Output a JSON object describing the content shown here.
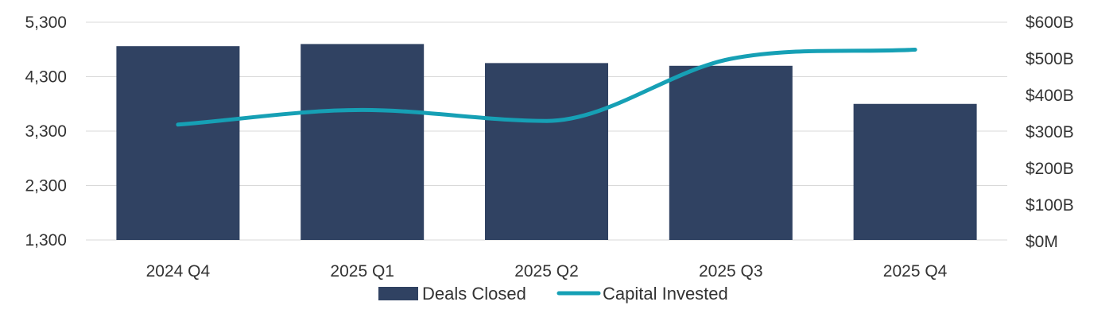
{
  "chart_data": {
    "type": "bar",
    "categories": [
      "2024 Q4",
      "2025 Q1",
      "2025 Q2",
      "2025 Q3",
      "2025 Q4"
    ],
    "series": [
      {
        "name": "Deals Closed",
        "type": "bar",
        "axis": "left",
        "color": "#304262",
        "values": [
          4860,
          4900,
          4550,
          4500,
          3800
        ]
      },
      {
        "name": "Capital Invested",
        "type": "line",
        "axis": "right",
        "smooth": true,
        "color": "#16A0B5",
        "values": [
          320,
          360,
          330,
          500,
          525
        ]
      }
    ],
    "y_left": {
      "ylim": [
        1300,
        5300
      ],
      "ticks": [
        1300,
        2300,
        3300,
        4300,
        5300
      ],
      "tick_labels": [
        "1,300",
        "2,300",
        "3,300",
        "4,300",
        "5,300"
      ]
    },
    "y_right": {
      "ylim": [
        0,
        600
      ],
      "ticks": [
        0,
        100,
        200,
        300,
        400,
        500,
        600
      ],
      "tick_labels": [
        "$0M",
        "$100B",
        "$200B",
        "$300B",
        "$400B",
        "$500B",
        "$600B"
      ]
    },
    "grid": true,
    "legend_position": "bottom"
  }
}
